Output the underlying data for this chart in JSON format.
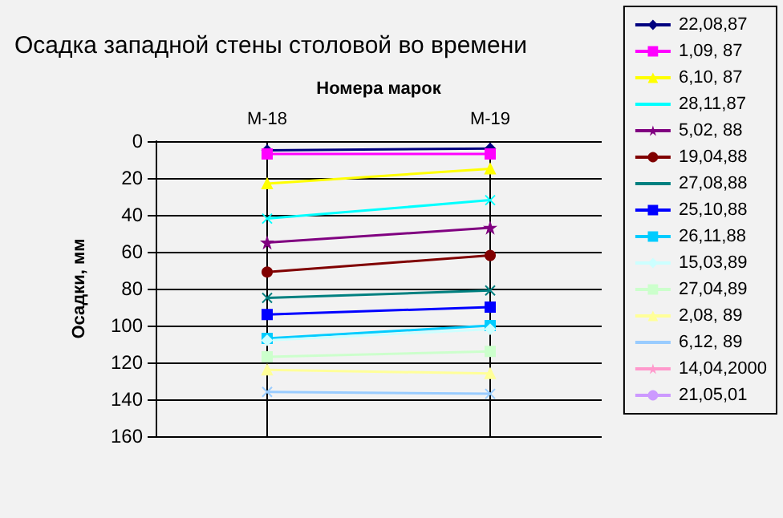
{
  "chart_data": {
    "type": "line",
    "title": "Осадка западной стены столовой во времени",
    "xlabel": "Номера марок",
    "ylabel": "Осадки, мм",
    "categories": [
      "M-18",
      "M-19"
    ],
    "ylim": [
      160,
      0
    ],
    "yticks": [
      0,
      20,
      40,
      60,
      80,
      100,
      120,
      140,
      160
    ],
    "grid": true,
    "legend": "right",
    "series": [
      {
        "name": "22,08,87",
        "color": "#000080",
        "marker": "diamond",
        "values": [
          5,
          4
        ]
      },
      {
        "name": "1,09, 87",
        "color": "#ff00ff",
        "marker": "square",
        "values": [
          7,
          7
        ]
      },
      {
        "name": "6,10, 87",
        "color": "#ffff00",
        "marker": "triangle",
        "values": [
          23,
          15
        ]
      },
      {
        "name": "28,11,87",
        "color": "#00ffff",
        "marker": "cross",
        "values": [
          42,
          32
        ]
      },
      {
        "name": "5,02, 88",
        "color": "#800080",
        "marker": "star",
        "values": [
          55,
          47
        ]
      },
      {
        "name": "19,04,88",
        "color": "#800000",
        "marker": "circle",
        "values": [
          71,
          62
        ]
      },
      {
        "name": "27,08,88",
        "color": "#008080",
        "marker": "cross",
        "values": [
          85,
          81
        ]
      },
      {
        "name": "25,10,88",
        "color": "#0000ff",
        "marker": "square",
        "values": [
          94,
          90
        ]
      },
      {
        "name": "26,11,88",
        "color": "#00ccff",
        "marker": "square",
        "values": [
          107,
          100
        ]
      },
      {
        "name": "15,03,89",
        "color": "#ccffff",
        "marker": "diamond",
        "values": [
          108,
          102
        ]
      },
      {
        "name": "27,04,89",
        "color": "#ccffcc",
        "marker": "square",
        "values": [
          117,
          114
        ]
      },
      {
        "name": "2,08, 89",
        "color": "#ffff99",
        "marker": "triangle",
        "values": [
          124,
          126
        ]
      },
      {
        "name": "6,12, 89",
        "color": "#99ccff",
        "marker": "cross",
        "values": [
          136,
          137
        ]
      },
      {
        "name": "14,04,2000",
        "color": "#ff99cc",
        "marker": "star",
        "values": [
          null,
          null
        ]
      },
      {
        "name": "21,05,01",
        "color": "#cc99ff",
        "marker": "circle",
        "values": [
          null,
          null
        ]
      }
    ]
  }
}
